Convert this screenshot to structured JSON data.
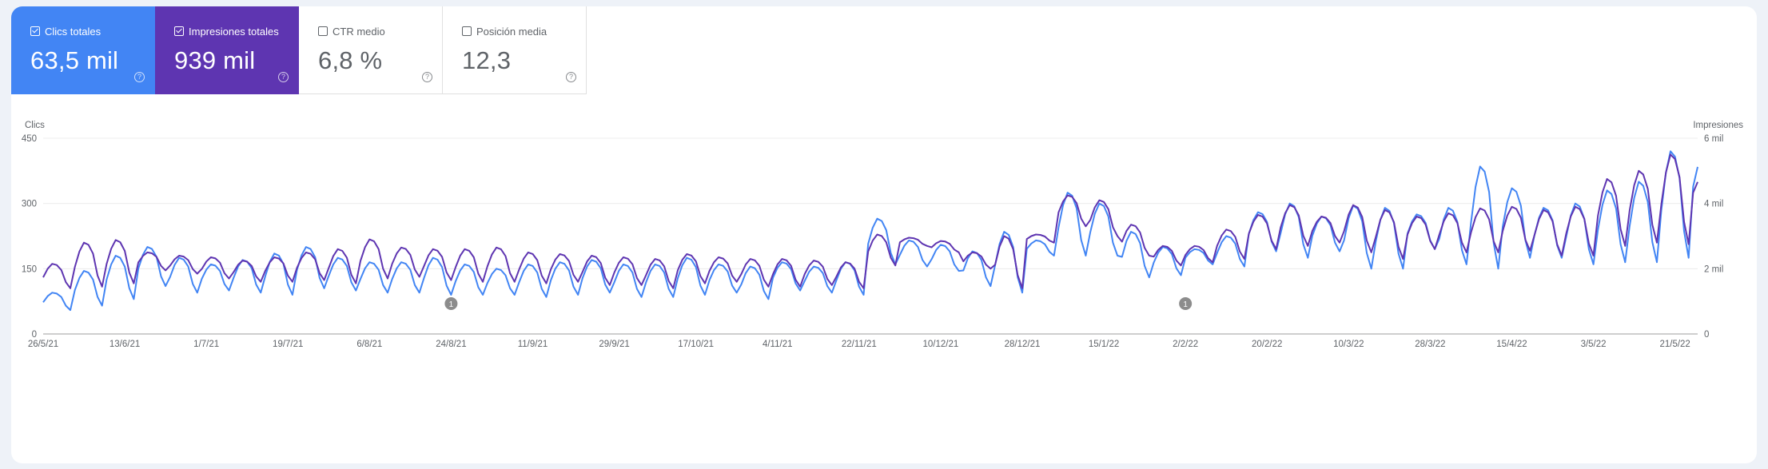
{
  "metric_cards": [
    {
      "label": "Clics totales",
      "value": "63,5 mil",
      "checked": true,
      "color": "#4285f4"
    },
    {
      "label": "Impresiones totales",
      "value": "939 mil",
      "checked": true,
      "color": "#5e35b1"
    },
    {
      "label": "CTR medio",
      "value": "6,8 %",
      "checked": false,
      "color": "#ffffff"
    },
    {
      "label": "Posición media",
      "value": "12,3",
      "checked": false,
      "color": "#ffffff"
    }
  ],
  "chart_data": {
    "type": "line",
    "title": "",
    "left_axis": {
      "label": "Clics",
      "ylim": [
        0,
        450
      ],
      "ticks": [
        0,
        150,
        300,
        450
      ],
      "tick_labels": [
        "0",
        "150",
        "300",
        "450"
      ]
    },
    "right_axis": {
      "label": "Impresiones",
      "ylim": [
        0,
        6000
      ],
      "ticks": [
        0,
        2000,
        4000,
        6000
      ],
      "tick_labels": [
        "0",
        "2 mil",
        "4 mil",
        "6 mil"
      ]
    },
    "x_range": [
      "2021-05-26",
      "2022-05-26"
    ],
    "x_ticks": [
      {
        "date": "2021-05-26",
        "label": "26/5/21"
      },
      {
        "date": "2021-06-13",
        "label": "13/6/21"
      },
      {
        "date": "2021-07-01",
        "label": "1/7/21"
      },
      {
        "date": "2021-07-19",
        "label": "19/7/21"
      },
      {
        "date": "2021-08-06",
        "label": "6/8/21"
      },
      {
        "date": "2021-08-24",
        "label": "24/8/21"
      },
      {
        "date": "2021-09-11",
        "label": "11/9/21"
      },
      {
        "date": "2021-09-29",
        "label": "29/9/21"
      },
      {
        "date": "2021-10-17",
        "label": "17/10/21"
      },
      {
        "date": "2021-11-04",
        "label": "4/11/21"
      },
      {
        "date": "2021-11-22",
        "label": "22/11/21"
      },
      {
        "date": "2021-12-10",
        "label": "10/12/21"
      },
      {
        "date": "2021-12-28",
        "label": "28/12/21"
      },
      {
        "date": "2022-01-15",
        "label": "15/1/22"
      },
      {
        "date": "2022-02-02",
        "label": "2/2/22"
      },
      {
        "date": "2022-02-20",
        "label": "20/2/22"
      },
      {
        "date": "2022-03-10",
        "label": "10/3/22"
      },
      {
        "date": "2022-03-28",
        "label": "28/3/22"
      },
      {
        "date": "2022-04-15",
        "label": "15/4/22"
      },
      {
        "date": "2022-05-03",
        "label": "3/5/22"
      },
      {
        "date": "2022-05-21",
        "label": "21/5/22"
      }
    ],
    "annotations": [
      {
        "date": "2021-08-24",
        "label": "1"
      },
      {
        "date": "2022-02-02",
        "label": "1"
      }
    ],
    "grid": true,
    "series": [
      {
        "name": "Clics",
        "axis": "left",
        "color": "#4285f4",
        "x": [
          "2021-05-26",
          "2021-06-02",
          "2021-06-09",
          "2021-06-16",
          "2021-06-23",
          "2021-06-30",
          "2021-07-07",
          "2021-07-14",
          "2021-07-21",
          "2021-07-28",
          "2021-08-04",
          "2021-08-11",
          "2021-08-18",
          "2021-08-25",
          "2021-09-01",
          "2021-09-08",
          "2021-09-15",
          "2021-09-22",
          "2021-09-29",
          "2021-10-06",
          "2021-10-13",
          "2021-10-20",
          "2021-10-27",
          "2021-11-03",
          "2021-11-10",
          "2021-11-17",
          "2021-11-24",
          "2021-12-01",
          "2021-12-08",
          "2021-12-15",
          "2021-12-22",
          "2021-12-29",
          "2022-01-05",
          "2022-01-12",
          "2022-01-19",
          "2022-01-26",
          "2022-02-02",
          "2022-02-09",
          "2022-02-16",
          "2022-02-23",
          "2022-03-02",
          "2022-03-09",
          "2022-03-16",
          "2022-03-23",
          "2022-03-30",
          "2022-04-06",
          "2022-04-13",
          "2022-04-20",
          "2022-04-27",
          "2022-05-04",
          "2022-05-11",
          "2022-05-18",
          "2022-05-25"
        ],
        "peaks": [
          95,
          145,
          180,
          200,
          175,
          160,
          170,
          185,
          200,
          175,
          165,
          165,
          175,
          160,
          150,
          160,
          165,
          170,
          160,
          160,
          175,
          160,
          155,
          165,
          155,
          165,
          265,
          215,
          205,
          190,
          235,
          215,
          325,
          300,
          235,
          200,
          195,
          225,
          280,
          300,
          270,
          295,
          290,
          275,
          290,
          385,
          335,
          290,
          300,
          330,
          350,
          420,
          410
        ],
        "troughs": [
          55,
          65,
          80,
          110,
          95,
          100,
          95,
          90,
          105,
          100,
          95,
          95,
          90,
          90,
          90,
          85,
          90,
          95,
          85,
          85,
          90,
          95,
          80,
          100,
          95,
          90,
          160,
          155,
          145,
          110,
          95,
          180,
          180,
          180,
          130,
          135,
          160,
          155,
          190,
          175,
          190,
          150,
          150,
          195,
          160,
          150,
          175,
          175,
          160,
          165,
          165,
          175,
          280
        ]
      },
      {
        "name": "Impresiones",
        "axis": "right",
        "color": "#5e35b1",
        "x": [
          "2021-05-26",
          "2021-06-02",
          "2021-06-09",
          "2021-06-16",
          "2021-06-23",
          "2021-06-30",
          "2021-07-07",
          "2021-07-14",
          "2021-07-21",
          "2021-07-28",
          "2021-08-04",
          "2021-08-11",
          "2021-08-18",
          "2021-08-25",
          "2021-09-01",
          "2021-09-08",
          "2021-09-15",
          "2021-09-22",
          "2021-09-29",
          "2021-10-06",
          "2021-10-13",
          "2021-10-20",
          "2021-10-27",
          "2021-11-03",
          "2021-11-10",
          "2021-11-17",
          "2021-11-24",
          "2021-12-01",
          "2021-12-08",
          "2021-12-15",
          "2021-12-22",
          "2021-12-29",
          "2022-01-05",
          "2022-01-12",
          "2022-01-19",
          "2022-01-26",
          "2022-02-02",
          "2022-02-09",
          "2022-02-16",
          "2022-02-23",
          "2022-03-02",
          "2022-03-09",
          "2022-03-16",
          "2022-03-23",
          "2022-03-30",
          "2022-04-06",
          "2022-04-13",
          "2022-04-20",
          "2022-04-27",
          "2022-05-04",
          "2022-05-11",
          "2022-05-18",
          "2022-05-25"
        ],
        "peaks": [
          2150,
          2800,
          2880,
          2500,
          2400,
          2350,
          2250,
          2350,
          2500,
          2600,
          2900,
          2650,
          2600,
          2600,
          2650,
          2500,
          2450,
          2400,
          2350,
          2300,
          2450,
          2350,
          2300,
          2300,
          2250,
          2200,
          3050,
          2950,
          2850,
          2500,
          3000,
          3050,
          4250,
          4100,
          3350,
          2700,
          2700,
          3200,
          3650,
          3950,
          3600,
          3950,
          3800,
          3600,
          3700,
          3850,
          3900,
          3800,
          3900,
          4750,
          5000,
          5500,
          4850
        ],
        "troughs": [
          1400,
          1450,
          1550,
          1950,
          1850,
          1700,
          1600,
          1600,
          1650,
          1550,
          1700,
          1750,
          1650,
          1600,
          1600,
          1550,
          1600,
          1500,
          1500,
          1400,
          1550,
          1600,
          1450,
          1450,
          1500,
          1400,
          2100,
          2700,
          2500,
          2000,
          1400,
          2800,
          3300,
          3000,
          2400,
          2100,
          2200,
          2300,
          2600,
          2700,
          2800,
          2500,
          2300,
          2600,
          2500,
          2500,
          2550,
          2400,
          2400,
          2700,
          2800,
          2750,
          3900
        ]
      }
    ]
  }
}
